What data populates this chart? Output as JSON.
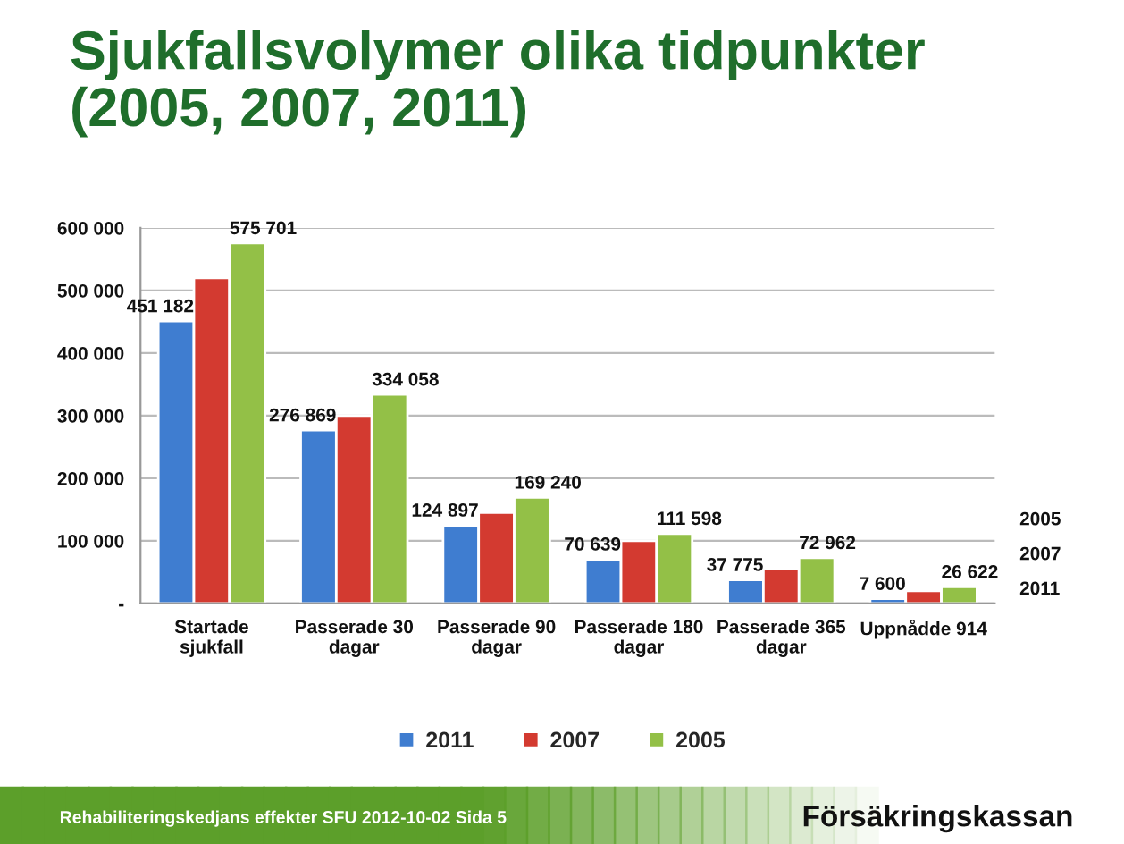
{
  "chart_data": {
    "type": "bar",
    "title": "Sjukfallsvolymer olika tidpunkter\n(2005, 2007, 2011)",
    "categories": [
      "Startade\nsjukfall",
      "Passerade 30\ndagar",
      "Passerade 90\ndagar",
      "Passerade 180\ndagar",
      "Passerade 365\ndagar",
      "Uppnådde 914"
    ],
    "series": [
      {
        "name": "2011",
        "color": "#3f7dd0",
        "values": [
          451182,
          276869,
          124897,
          70639,
          37775,
          7600
        ],
        "value_labels": [
          "451 182",
          "276 869",
          "124 897",
          "70 639",
          "37 775",
          "7 600"
        ]
      },
      {
        "name": "2007",
        "color": "#d33a30",
        "values": [
          520000,
          300000,
          145000,
          100000,
          55000,
          20000
        ]
      },
      {
        "name": "2005",
        "color": "#93c047",
        "values": [
          575701,
          334058,
          169240,
          111598,
          72962,
          26622
        ],
        "value_labels": [
          "575 701",
          "334 058",
          "169 240",
          "111 598",
          "72 962",
          "26 622"
        ]
      }
    ],
    "ylim": [
      0,
      600000
    ],
    "yticks": [
      {
        "value": 0,
        "label": "-"
      },
      {
        "value": 100000,
        "label": "100 000"
      },
      {
        "value": 200000,
        "label": "200 000"
      },
      {
        "value": 300000,
        "label": "300 000"
      },
      {
        "value": 400000,
        "label": "400 000"
      },
      {
        "value": 500000,
        "label": "500 000"
      },
      {
        "value": 600000,
        "label": "600 000"
      }
    ],
    "grid": "y",
    "legend": "bottom",
    "annotations": [
      "Rehabiliteringskedjans effekter SFU 2012-10-02 Sida 5",
      "Försäkringskassan"
    ]
  }
}
